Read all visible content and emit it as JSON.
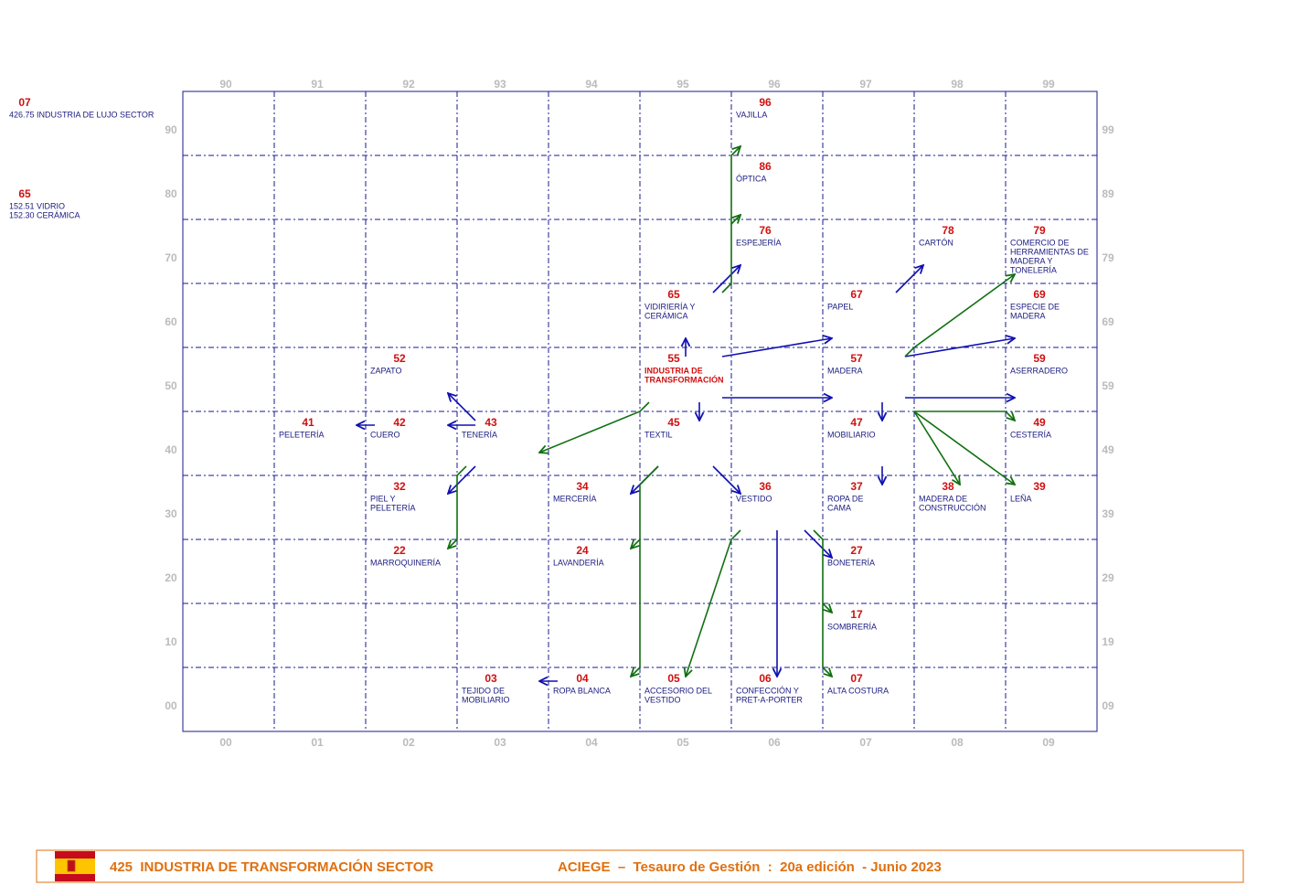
{
  "notes": [
    {
      "code": "07",
      "lines": [
        "426.75 INDUSTRIA DE LUJO SECTOR"
      ]
    },
    {
      "code": "65",
      "lines": [
        "152.51 VIDRIO",
        "152.30 CERÁMICA"
      ]
    }
  ],
  "axes": {
    "top": [
      "90",
      "91",
      "92",
      "93",
      "94",
      "95",
      "96",
      "97",
      "98",
      "99"
    ],
    "bottom": [
      "00",
      "01",
      "02",
      "03",
      "04",
      "05",
      "06",
      "07",
      "08",
      "09"
    ],
    "left": [
      "90",
      "80",
      "70",
      "60",
      "50",
      "40",
      "30",
      "20",
      "10",
      "00"
    ],
    "right": [
      "99",
      "89",
      "79",
      "69",
      "59",
      "49",
      "39",
      "29",
      "19",
      "09"
    ]
  },
  "cells": [
    {
      "code": "96",
      "lines": [
        "VAJILLA"
      ]
    },
    {
      "code": "86",
      "lines": [
        "ÓPTICA"
      ]
    },
    {
      "code": "76",
      "lines": [
        "ESPEJERÍA"
      ]
    },
    {
      "code": "78",
      "lines": [
        "CARTÓN"
      ]
    },
    {
      "code": "79",
      "lines": [
        "COMERCIO DE",
        "HERRAMIENTAS DE",
        "MADERA Y",
        "TONELERÍA"
      ]
    },
    {
      "code": "65",
      "lines": [
        "VIDIRIERÍA Y",
        "CERÁMICA"
      ]
    },
    {
      "code": "67",
      "lines": [
        "PAPEL"
      ]
    },
    {
      "code": "69",
      "lines": [
        "ESPECIE DE",
        "MADERA"
      ]
    },
    {
      "code": "52",
      "lines": [
        "ZAPATO"
      ]
    },
    {
      "code": "55",
      "lines": [
        "INDUSTRIA DE",
        "TRANSFORMACIÓN"
      ]
    },
    {
      "code": "57",
      "lines": [
        "MADERA"
      ]
    },
    {
      "code": "59",
      "lines": [
        "ASERRADERO"
      ]
    },
    {
      "code": "41",
      "lines": [
        "PELETERÍA"
      ]
    },
    {
      "code": "42",
      "lines": [
        "CUERO"
      ]
    },
    {
      "code": "43",
      "lines": [
        "TENERÍA"
      ]
    },
    {
      "code": "45",
      "lines": [
        "TEXTIL"
      ]
    },
    {
      "code": "47",
      "lines": [
        "MOBILIARIO"
      ]
    },
    {
      "code": "49",
      "lines": [
        "CESTERÍA"
      ]
    },
    {
      "code": "32",
      "lines": [
        "PIEL Y",
        "PELETERÍA"
      ]
    },
    {
      "code": "34",
      "lines": [
        "MERCERÍA"
      ]
    },
    {
      "code": "36",
      "lines": [
        "VESTIDO"
      ]
    },
    {
      "code": "37",
      "lines": [
        "ROPA DE",
        "CAMA"
      ]
    },
    {
      "code": "38",
      "lines": [
        "MADERA DE",
        "CONSTRUCCIÓN"
      ]
    },
    {
      "code": "39",
      "lines": [
        "LEÑA"
      ]
    },
    {
      "code": "22",
      "lines": [
        "MARROQUINERÍA"
      ]
    },
    {
      "code": "24",
      "lines": [
        "LAVANDERÍA"
      ]
    },
    {
      "code": "27",
      "lines": [
        "BONETERÍA"
      ]
    },
    {
      "code": "17",
      "lines": [
        "SOMBRERÍA"
      ]
    },
    {
      "code": "03",
      "lines": [
        "TEJIDO DE",
        "MOBILIARIO"
      ]
    },
    {
      "code": "04",
      "lines": [
        "ROPA BLANCA"
      ]
    },
    {
      "code": "05",
      "lines": [
        "ACCESORIO DEL",
        "VESTIDO"
      ]
    },
    {
      "code": "06",
      "lines": [
        "CONFECCIÓN Y",
        "PRET-A-PORTER"
      ]
    },
    {
      "code": "07",
      "lines": [
        "ALTA COSTURA"
      ]
    }
  ],
  "footer": {
    "title": "425  INDUSTRIA DE TRANSFORMACIÓN SECTOR",
    "credit": "ACIEGE  –  Tesauro de Gestión  :  20a edición  - Junio 2023"
  }
}
